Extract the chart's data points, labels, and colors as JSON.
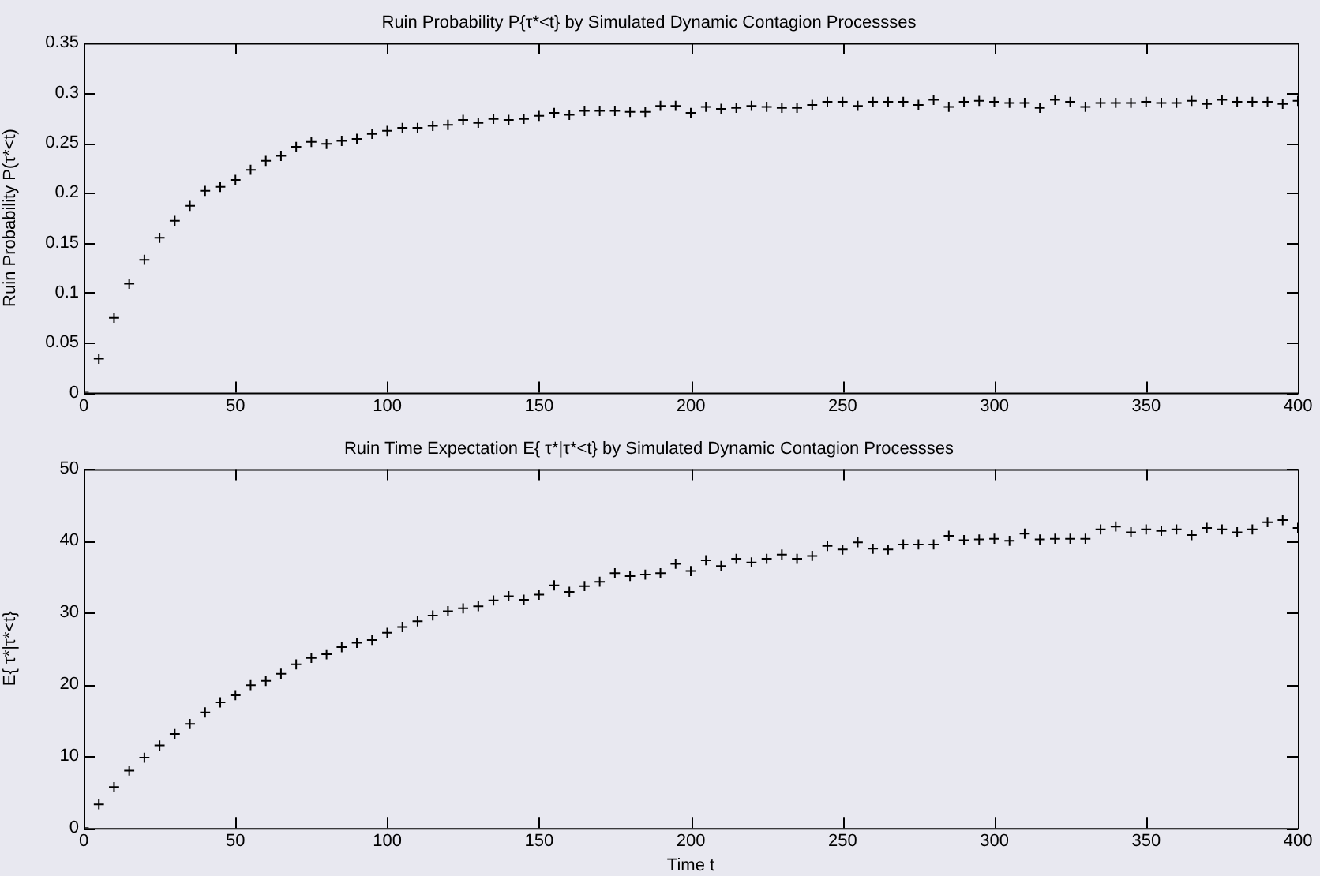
{
  "chart_data": [
    {
      "type": "scatter",
      "title": "Ruin Probability P{τ*<t} by Simulated Dynamic Contagion Processses",
      "ylabel": "Ruin Probability P(τ*<t)",
      "x": [
        0,
        5,
        10,
        15,
        20,
        25,
        30,
        35,
        40,
        45,
        50,
        55,
        60,
        65,
        70,
        75,
        80,
        85,
        90,
        95,
        100,
        105,
        110,
        115,
        120,
        125,
        130,
        135,
        140,
        145,
        150,
        155,
        160,
        165,
        170,
        175,
        180,
        185,
        190,
        195,
        200,
        205,
        210,
        215,
        220,
        225,
        230,
        235,
        240,
        245,
        250,
        255,
        260,
        265,
        270,
        275,
        280,
        285,
        290,
        295,
        300,
        305,
        310,
        315,
        320,
        325,
        330,
        335,
        340,
        345,
        350,
        355,
        360,
        365,
        370,
        375,
        380,
        385,
        390,
        395,
        400
      ],
      "series": [
        {
          "color": "#000000",
          "values": [
            0,
            0.034,
            0.075,
            0.109,
            0.133,
            0.155,
            0.172,
            0.187,
            0.202,
            0.206,
            0.213,
            0.223,
            0.232,
            0.237,
            0.246,
            0.251,
            0.249,
            0.252,
            0.254,
            0.259,
            0.262,
            0.265,
            0.265,
            0.267,
            0.268,
            0.273,
            0.27,
            0.274,
            0.273,
            0.274,
            0.277,
            0.28,
            0.278,
            0.282,
            0.282,
            0.282,
            0.281,
            0.281,
            0.287,
            0.287,
            0.28,
            0.286,
            0.284,
            0.285,
            0.287,
            0.286,
            0.285,
            0.285,
            0.288,
            0.291,
            0.291,
            0.287,
            0.291,
            0.291,
            0.291,
            0.288,
            0.293,
            0.286,
            0.291,
            0.292,
            0.291,
            0.29,
            0.29,
            0.285,
            0.293,
            0.291,
            0.286,
            0.29,
            0.29,
            0.29,
            0.291,
            0.29,
            0.29,
            0.292,
            0.289,
            0.293,
            0.291,
            0.291,
            0.291,
            0.289,
            0.292
          ]
        }
      ],
      "xlim": [
        0,
        400
      ],
      "xticks": [
        0,
        50,
        100,
        150,
        200,
        250,
        300,
        350,
        400
      ],
      "ylim": [
        0,
        0.35
      ],
      "yticks": [
        0,
        0.05,
        0.1,
        0.15,
        0.2,
        0.25,
        0.3,
        0.35
      ],
      "grid": false,
      "legend": false,
      "marker": "cross"
    },
    {
      "type": "scatter",
      "title": "Ruin Time Expectation E{ τ*|τ*<t} by Simulated Dynamic Contagion Processses",
      "xlabel": "Time t",
      "ylabel": "E{ τ*|τ*<t}",
      "x": [
        0,
        5,
        10,
        15,
        20,
        25,
        30,
        35,
        40,
        45,
        50,
        55,
        60,
        65,
        70,
        75,
        80,
        85,
        90,
        95,
        100,
        105,
        110,
        115,
        120,
        125,
        130,
        135,
        140,
        145,
        150,
        155,
        160,
        165,
        170,
        175,
        180,
        185,
        190,
        195,
        200,
        205,
        210,
        215,
        220,
        225,
        230,
        235,
        240,
        245,
        250,
        255,
        260,
        265,
        270,
        275,
        280,
        285,
        290,
        295,
        300,
        305,
        310,
        315,
        320,
        325,
        330,
        335,
        340,
        345,
        350,
        355,
        360,
        365,
        370,
        375,
        380,
        385,
        390,
        395,
        400
      ],
      "series": [
        {
          "color": "#000000",
          "values": [
            0,
            3.3,
            5.7,
            8.0,
            9.8,
            11.5,
            13.1,
            14.5,
            16.1,
            17.5,
            18.5,
            19.9,
            20.5,
            21.5,
            22.8,
            23.7,
            24.2,
            25.2,
            25.8,
            26.2,
            27.2,
            28.0,
            28.8,
            29.6,
            30.2,
            30.6,
            30.9,
            31.7,
            32.3,
            31.8,
            32.5,
            33.8,
            32.9,
            33.7,
            34.3,
            35.5,
            35.1,
            35.3,
            35.5,
            36.8,
            35.8,
            37.3,
            36.5,
            37.5,
            37.0,
            37.5,
            38.1,
            37.5,
            37.9,
            39.3,
            38.8,
            39.8,
            38.9,
            38.8,
            39.5,
            39.5,
            39.5,
            40.7,
            40.1,
            40.2,
            40.3,
            40.0,
            41.0,
            40.2,
            40.3,
            40.3,
            40.3,
            41.6,
            42.0,
            41.2,
            41.6,
            41.4,
            41.6,
            40.8,
            41.8,
            41.6,
            41.2,
            41.6,
            42.6,
            42.9,
            41.8
          ]
        }
      ],
      "xlim": [
        0,
        400
      ],
      "xticks": [
        0,
        50,
        100,
        150,
        200,
        250,
        300,
        350,
        400
      ],
      "ylim": [
        0,
        50
      ],
      "yticks": [
        0,
        10,
        20,
        30,
        40,
        50
      ],
      "grid": false,
      "legend": false,
      "marker": "cross"
    }
  ]
}
